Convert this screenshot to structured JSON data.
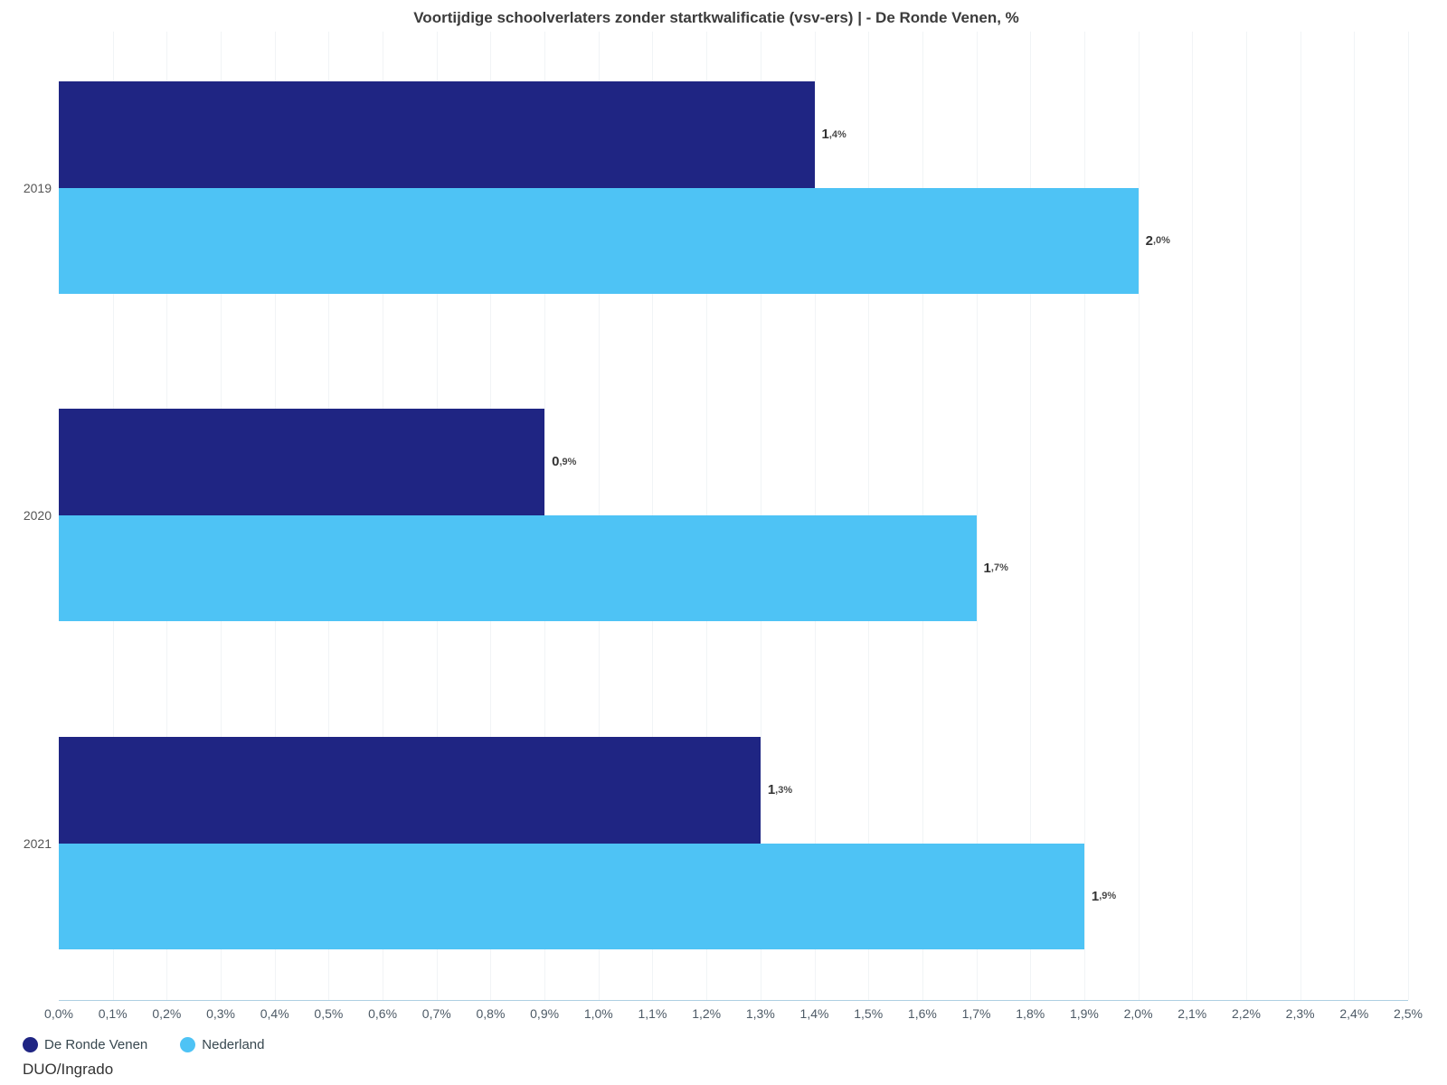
{
  "title": "Voortijdige schoolverlaters zonder startkwalificatie (vsv-ers) | - De Ronde Venen, %",
  "source": "DUO/Ingrado",
  "colors": {
    "de_ronde_venen": "#1f2583",
    "nederland": "#4ec3f5",
    "axis_line": "#c4dcec",
    "gridline": "#f1f4f6"
  },
  "legend": [
    {
      "label": "De Ronde Venen",
      "color": "#1f2583"
    },
    {
      "label": "Nederland",
      "color": "#4ec3f5"
    }
  ],
  "chart_data": {
    "type": "bar",
    "orientation": "horizontal",
    "title": "Voortijdige schoolverlaters zonder startkwalificatie (vsv-ers) | - De Ronde Venen, %",
    "categories": [
      "2019",
      "2020",
      "2021"
    ],
    "series": [
      {
        "name": "De Ronde Venen",
        "color": "#1f2583",
        "values": [
          1.4,
          0.9,
          1.3
        ],
        "labels": [
          "1,4%",
          "0,9%",
          "1,3%"
        ]
      },
      {
        "name": "Nederland",
        "color": "#4ec3f5",
        "values": [
          2.0,
          1.7,
          1.9
        ],
        "labels": [
          "2,0%",
          "1,7%",
          "1,9%"
        ]
      }
    ],
    "xlim": [
      0,
      2.5
    ],
    "tick_step": 0.1,
    "x_tick_labels": [
      "0,0%",
      "0,1%",
      "0,2%",
      "0,3%",
      "0,4%",
      "0,5%",
      "0,6%",
      "0,7%",
      "0,8%",
      "0,9%",
      "1,0%",
      "1,1%",
      "1,2%",
      "1,3%",
      "1,4%",
      "1,5%",
      "1,6%",
      "1,7%",
      "1,8%",
      "1,9%",
      "2,0%",
      "2,1%",
      "2,2%",
      "2,3%",
      "2,4%",
      "2,5%"
    ],
    "grid": true,
    "legend_position": "bottom-left"
  }
}
